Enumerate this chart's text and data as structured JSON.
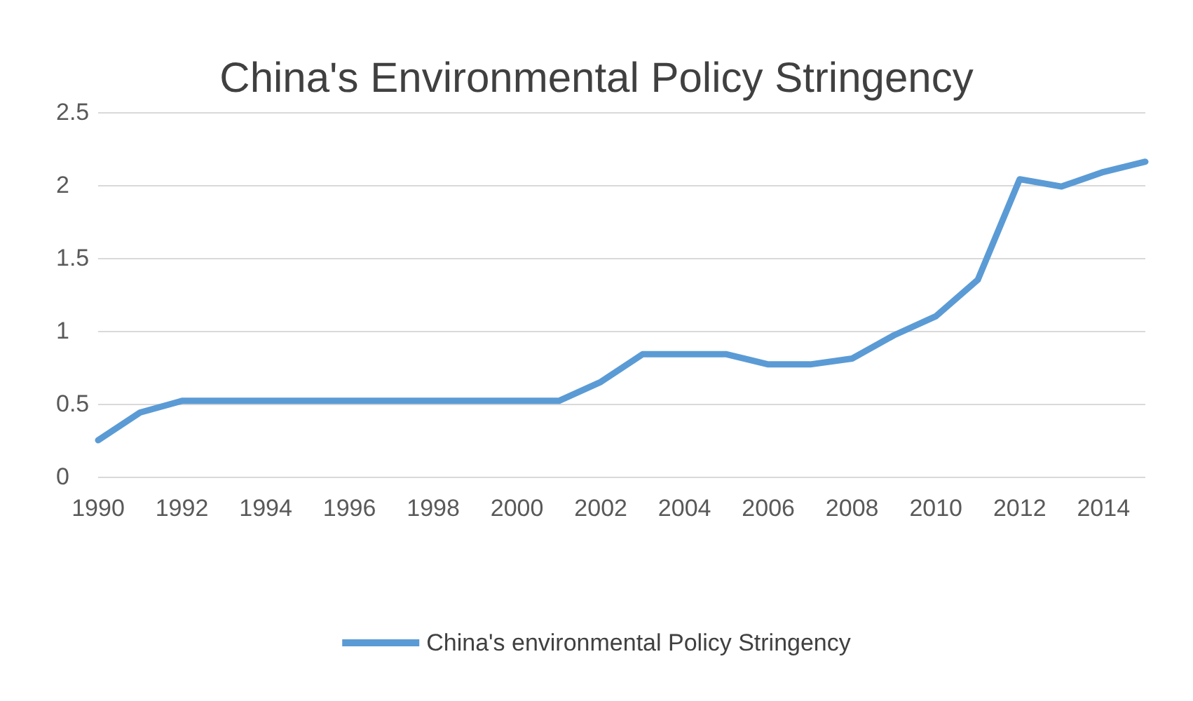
{
  "chart_data": {
    "type": "line",
    "title": "China's Environmental Policy Stringency",
    "categories": [
      "1990",
      null,
      "1992",
      null,
      "1994",
      null,
      "1996",
      null,
      "1998",
      null,
      "2000",
      null,
      "2002",
      null,
      "2004",
      null,
      "2006",
      null,
      "2008",
      null,
      "2010",
      null,
      "2012",
      null,
      "2014",
      null
    ],
    "series": [
      {
        "name": "China's environmental Policy Stringency",
        "color": "#5b9bd5",
        "values": [
          0.25,
          0.44,
          0.52,
          0.52,
          0.52,
          0.52,
          0.52,
          0.52,
          0.52,
          0.52,
          0.52,
          0.52,
          0.65,
          0.84,
          0.84,
          0.84,
          0.77,
          0.77,
          0.81,
          0.97,
          1.1,
          1.35,
          2.04,
          1.99,
          2.09,
          2.16
        ]
      }
    ],
    "ylim": [
      0,
      2.5
    ],
    "yticks": [
      0,
      0.5,
      1,
      1.5,
      2,
      2.5
    ],
    "grid": "y",
    "legend": "bottom",
    "marker": "none",
    "line_style": "solid"
  }
}
